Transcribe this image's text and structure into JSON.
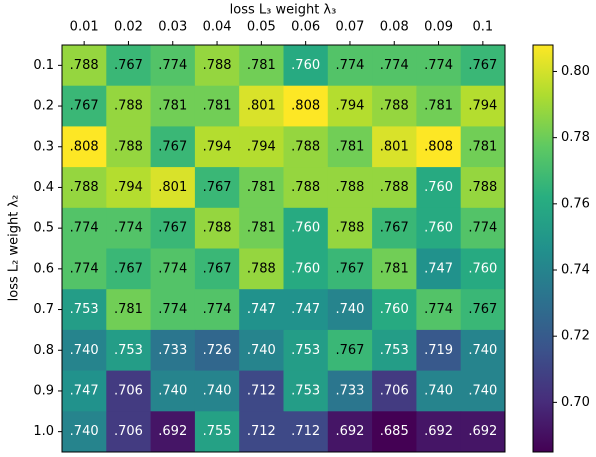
{
  "chart_data": {
    "type": "heatmap",
    "xlabel": "loss L₃ weight λ₃",
    "ylabel": "loss L₂ weight λ₂",
    "x_categories": [
      "0.01",
      "0.02",
      "0.03",
      "0.04",
      "0.05",
      "0.06",
      "0.07",
      "0.08",
      "0.09",
      "0.1"
    ],
    "y_categories": [
      "0.1",
      "0.2",
      "0.3",
      "0.4",
      "0.5",
      "0.6",
      "0.7",
      "0.8",
      "0.9",
      "1.0"
    ],
    "values": [
      [
        0.788,
        0.767,
        0.774,
        0.788,
        0.781,
        0.76,
        0.774,
        0.774,
        0.774,
        0.767
      ],
      [
        0.767,
        0.788,
        0.781,
        0.781,
        0.801,
        0.808,
        0.794,
        0.788,
        0.781,
        0.794
      ],
      [
        0.808,
        0.788,
        0.767,
        0.794,
        0.794,
        0.788,
        0.781,
        0.801,
        0.808,
        0.781
      ],
      [
        0.788,
        0.794,
        0.801,
        0.767,
        0.781,
        0.788,
        0.788,
        0.788,
        0.76,
        0.788
      ],
      [
        0.774,
        0.774,
        0.767,
        0.788,
        0.781,
        0.76,
        0.788,
        0.767,
        0.76,
        0.774
      ],
      [
        0.774,
        0.767,
        0.774,
        0.767,
        0.788,
        0.76,
        0.767,
        0.781,
        0.747,
        0.76
      ],
      [
        0.753,
        0.781,
        0.774,
        0.774,
        0.747,
        0.747,
        0.74,
        0.76,
        0.774,
        0.767
      ],
      [
        0.74,
        0.753,
        0.733,
        0.726,
        0.74,
        0.753,
        0.767,
        0.753,
        0.719,
        0.74
      ],
      [
        0.747,
        0.706,
        0.74,
        0.74,
        0.712,
        0.753,
        0.733,
        0.706,
        0.74,
        0.74
      ],
      [
        0.74,
        0.706,
        0.692,
        0.755,
        0.712,
        0.712,
        0.692,
        0.685,
        0.692,
        0.692
      ]
    ],
    "value_labels": [
      [
        ".788",
        ".767",
        ".774",
        ".788",
        ".781",
        ".760",
        ".774",
        ".774",
        ".774",
        ".767"
      ],
      [
        ".767",
        ".788",
        ".781",
        ".781",
        ".801",
        ".808",
        ".794",
        ".788",
        ".781",
        ".794"
      ],
      [
        ".808",
        ".788",
        ".767",
        ".794",
        ".794",
        ".788",
        ".781",
        ".801",
        ".808",
        ".781"
      ],
      [
        ".788",
        ".794",
        ".801",
        ".767",
        ".781",
        ".788",
        ".788",
        ".788",
        ".760",
        ".788"
      ],
      [
        ".774",
        ".774",
        ".767",
        ".788",
        ".781",
        ".760",
        ".788",
        ".767",
        ".760",
        ".774"
      ],
      [
        ".774",
        ".767",
        ".774",
        ".767",
        ".788",
        ".760",
        ".767",
        ".781",
        ".747",
        ".760"
      ],
      [
        ".753",
        ".781",
        ".774",
        ".774",
        ".747",
        ".747",
        ".740",
        ".760",
        ".774",
        ".767"
      ],
      [
        ".740",
        ".753",
        ".733",
        ".726",
        ".740",
        ".753",
        ".767",
        ".753",
        ".719",
        ".740"
      ],
      [
        ".747",
        ".706",
        ".740",
        ".740",
        ".712",
        ".753",
        ".733",
        ".706",
        ".740",
        ".740"
      ],
      [
        ".740",
        ".706",
        ".692",
        ".755",
        ".712",
        ".712",
        ".692",
        ".685",
        ".692",
        ".692"
      ]
    ],
    "colormap": "viridis",
    "clim": [
      0.685,
      0.808
    ],
    "cticks": [
      {
        "value": 0.7,
        "label": "0.70"
      },
      0.72,
      0.74,
      0.76,
      0.78,
      {
        "value": 0.8,
        "label": "0.80"
      }
    ]
  }
}
